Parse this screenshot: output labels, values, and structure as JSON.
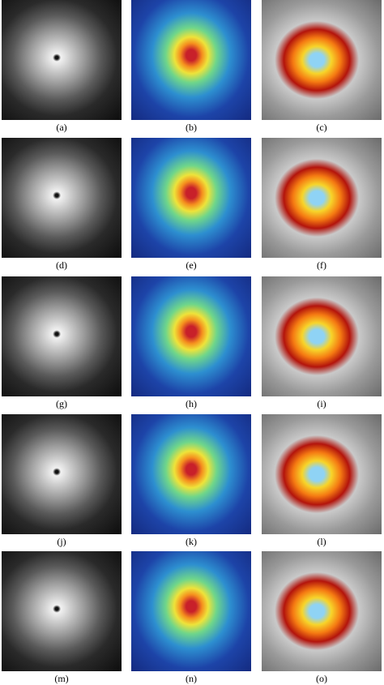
{
  "rows": [
    [
      "(a)",
      "(b)",
      "(c)"
    ],
    [
      "(d)",
      "(e)",
      "(f)"
    ],
    [
      "(g)",
      "(h)",
      "(i)"
    ],
    [
      "(j)",
      "(k)",
      "(l)"
    ],
    [
      "(m)",
      "(n)",
      "(o)"
    ]
  ]
}
